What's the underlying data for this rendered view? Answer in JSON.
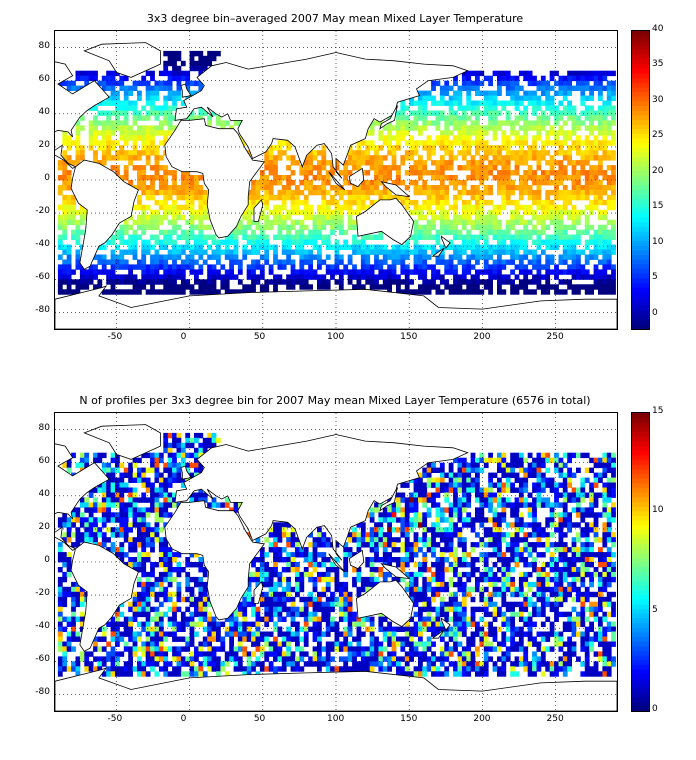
{
  "figure": {
    "panels": [
      {
        "id": "top",
        "title": "3x3 degree bin–averaged 2007 May mean Mixed Layer Temperature",
        "colorbar": {
          "min": -2,
          "max": 40,
          "ticks": [
            0,
            5,
            10,
            15,
            20,
            25,
            30,
            35,
            40
          ]
        }
      },
      {
        "id": "bottom",
        "title": "N of profiles per 3x3 degree bin for 2007 May mean Mixed Layer Temperature  (6576 in total)",
        "colorbar": {
          "min": 0,
          "max": 15,
          "ticks": [
            0,
            5,
            10,
            15
          ]
        }
      }
    ],
    "x_ticks": [
      "-50",
      "0",
      "50",
      "100",
      "150",
      "200",
      "250"
    ],
    "y_ticks": [
      "80",
      "60",
      "40",
      "20",
      "0",
      "-20",
      "-40",
      "-60",
      "-80"
    ],
    "colors": {
      "colormap": "jet",
      "land_outline": "#000000",
      "grid": "#000000"
    }
  }
}
